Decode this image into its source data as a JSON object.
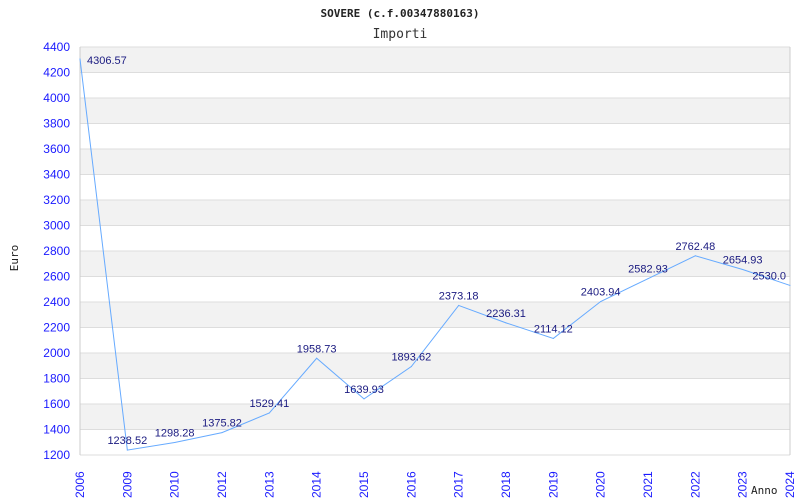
{
  "chart_data": {
    "type": "line",
    "title": "SOVERE (c.f.00347880163)",
    "subtitle": "Importi",
    "xlabel": "Anno",
    "ylabel": "Euro",
    "categories": [
      "2006",
      "2009",
      "2010",
      "2012",
      "2013",
      "2014",
      "2015",
      "2016",
      "2017",
      "2018",
      "2019",
      "2020",
      "2021",
      "2022",
      "2023",
      "2024"
    ],
    "values": [
      4306.57,
      1238.52,
      1298.28,
      1375.82,
      1529.41,
      1958.73,
      1639.93,
      1893.62,
      2373.18,
      2236.31,
      2114.12,
      2403.94,
      2582.93,
      2762.48,
      2654.93,
      2530.0
    ],
    "labels": [
      "4306.57",
      "1238.52",
      "1298.28",
      "1375.82",
      "1529.41",
      "1958.73",
      "1639.93",
      "1893.62",
      "2373.18",
      "2236.31",
      "2114.12",
      "2403.94",
      "2582.93",
      "2762.48",
      "2654.93",
      "2530.0"
    ],
    "ylim": [
      1200,
      4400
    ],
    "yticks": [
      1200,
      1400,
      1600,
      1800,
      2000,
      2200,
      2400,
      2600,
      2800,
      3000,
      3200,
      3400,
      3600,
      3800,
      4000,
      4200,
      4400
    ],
    "grid": true,
    "line_color": "#66aaff",
    "tick_color": "#1a1aff",
    "band_color": "#f2f2f2"
  }
}
